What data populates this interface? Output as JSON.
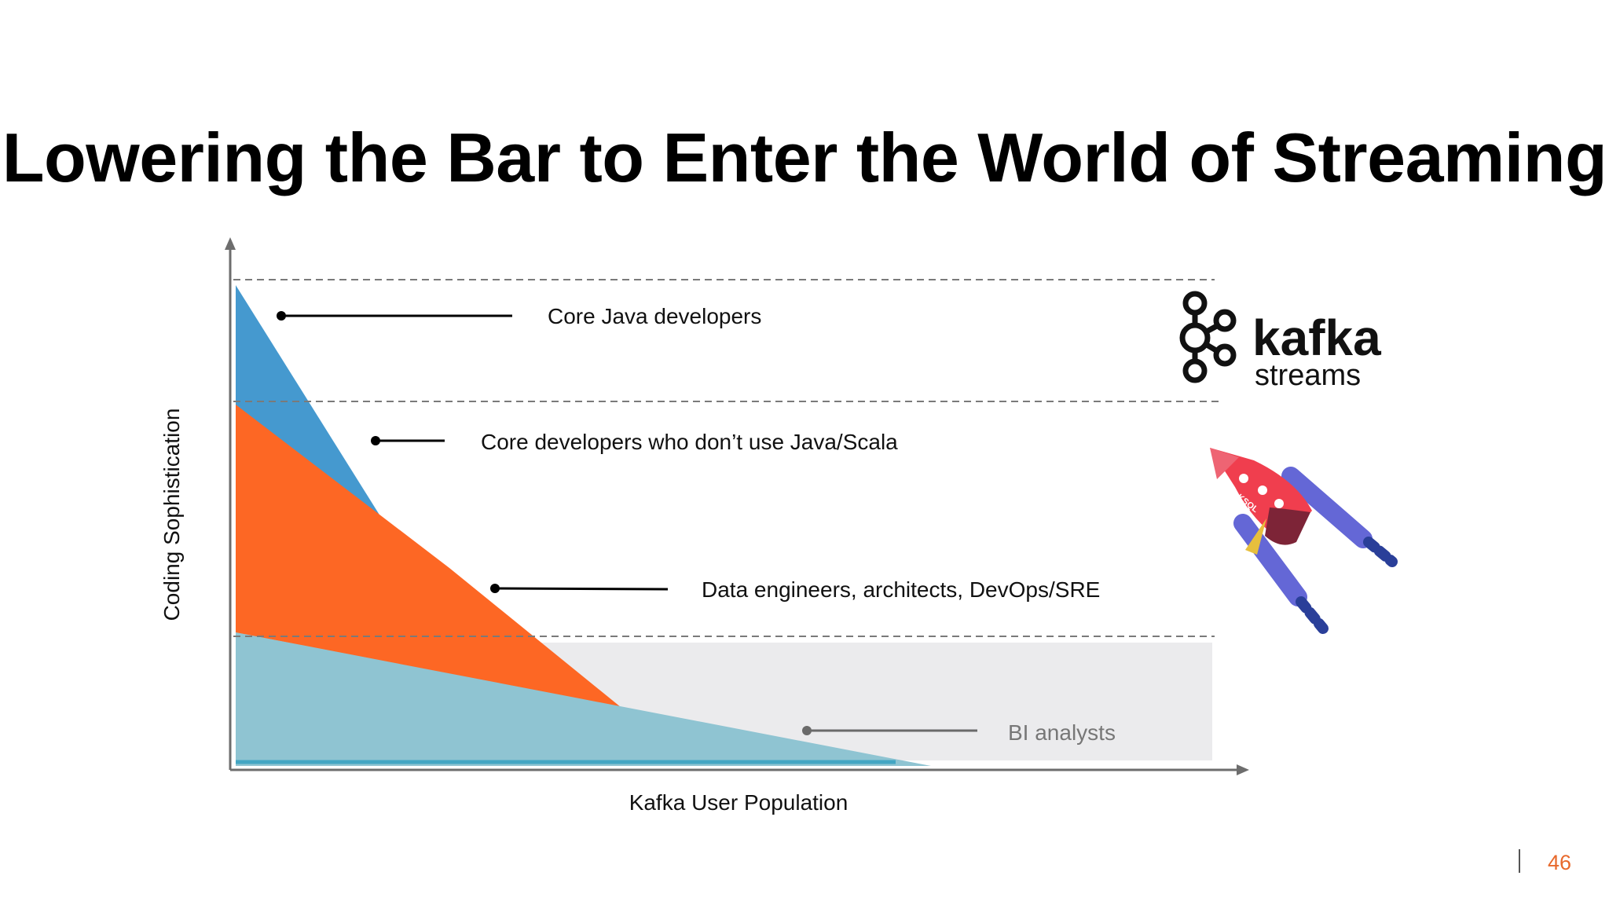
{
  "slide": {
    "title": "Lowering the Bar to Enter the World of Streaming",
    "page_number": "46"
  },
  "diagram": {
    "y_axis_label": "Coding Sophistication",
    "x_axis_label": "Kafka User Population",
    "tiers": [
      {
        "label": "Core Java developers",
        "color": "#4599cf"
      },
      {
        "label": "Core developers who don’t use Java/Scala",
        "color": "#fd6724"
      },
      {
        "label": "Data engineers, architects, DevOps/SRE",
        "color": "#eaa183"
      },
      {
        "label": "BI analysts",
        "color": "#8fc4d2"
      }
    ],
    "band_color": "#ebebed"
  },
  "logos": {
    "kafka_word": "kafka",
    "streams_word": "streams",
    "rocket_text": "KSQL"
  }
}
